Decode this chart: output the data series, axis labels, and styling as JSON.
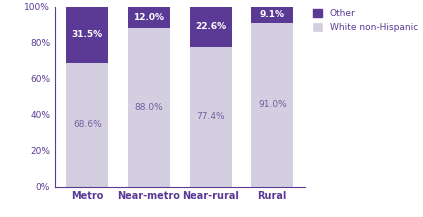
{
  "categories": [
    "Metro",
    "Near-metro",
    "Near-rural",
    "Rural"
  ],
  "white_values": [
    68.6,
    88.0,
    77.4,
    91.0
  ],
  "other_values": [
    31.5,
    12.0,
    22.6,
    9.1
  ],
  "white_color": "#d4cfe0",
  "other_color": "#5b3a96",
  "white_label": "White non-Hispanic",
  "other_label": "Other",
  "ylim": [
    0,
    100
  ],
  "yticks": [
    0,
    20,
    40,
    60,
    80,
    100
  ],
  "ytick_labels": [
    "0%",
    "20%",
    "40%",
    "60%",
    "80%",
    "100%"
  ],
  "white_text_color": "#7060a0",
  "other_text_color": "#ffffff",
  "bar_width": 0.68,
  "figsize": [
    4.23,
    2.17
  ],
  "dpi": 100,
  "legend_text_color": "#5b3a96",
  "axis_label_color": "#5b3a96",
  "ytick_color": "#5b3a96",
  "spine_color": "#5b3a96"
}
